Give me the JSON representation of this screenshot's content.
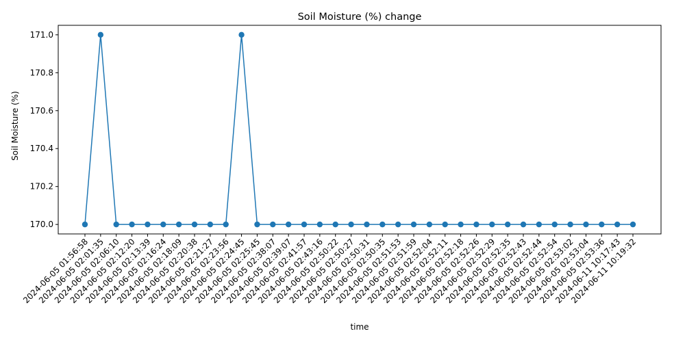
{
  "chart_data": {
    "type": "line",
    "title": "Soil Moisture (%) change",
    "xlabel": "time",
    "ylabel": "Soil Moisture (%)",
    "ylim": [
      169.95,
      171.05
    ],
    "yticks": [
      "170.0",
      "170.2",
      "170.4",
      "170.6",
      "170.8",
      "171.0"
    ],
    "grid": false,
    "line_color": "#1f77b4",
    "x": [
      "2024-06-05 01:56:58",
      "2024-06-05 02:01:35",
      "2024-06-05 02:06:10",
      "2024-06-05 02:12:20",
      "2024-06-05 02:13:39",
      "2024-06-05 02:16:24",
      "2024-06-05 02:18:09",
      "2024-06-05 02:20:38",
      "2024-06-05 02:21:27",
      "2024-06-05 02:23:56",
      "2024-06-05 02:24:45",
      "2024-06-05 02:25:45",
      "2024-06-05 02:38:07",
      "2024-06-05 02:39:07",
      "2024-06-05 02:41:57",
      "2024-06-05 02:43:16",
      "2024-06-05 02:50:22",
      "2024-06-05 02:50:27",
      "2024-06-05 02:50:31",
      "2024-06-05 02:50:35",
      "2024-06-05 02:51:53",
      "2024-06-05 02:51:59",
      "2024-06-05 02:52:04",
      "2024-06-05 02:52:11",
      "2024-06-05 02:52:18",
      "2024-06-05 02:52:26",
      "2024-06-05 02:52:29",
      "2024-06-05 02:52:35",
      "2024-06-05 02:52:43",
      "2024-06-05 02:52:44",
      "2024-06-05 02:52:54",
      "2024-06-05 02:53:02",
      "2024-06-05 02:53:04",
      "2024-06-05 02:53:36",
      "2024-06-11 10:17:43",
      "2024-06-11 10:19:32"
    ],
    "series": [
      {
        "values": [
          170,
          171,
          170,
          170,
          170,
          170,
          170,
          170,
          170,
          170,
          171,
          170,
          170,
          170,
          170,
          170,
          170,
          170,
          170,
          170,
          170,
          170,
          170,
          170,
          170,
          170,
          170,
          170,
          170,
          170,
          170,
          170,
          170,
          170,
          170,
          170
        ]
      }
    ]
  }
}
